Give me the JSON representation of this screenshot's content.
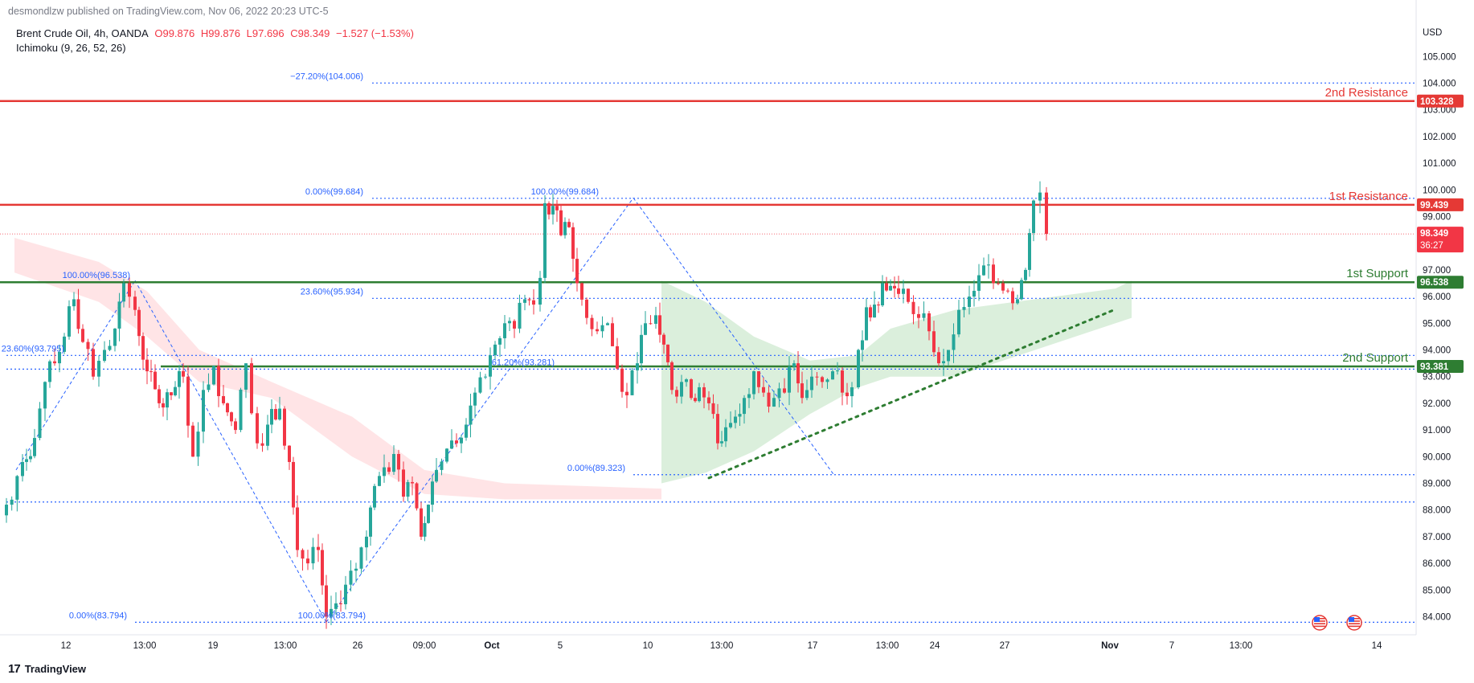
{
  "header": {
    "published": "desmondlzw published on TradingView.com, Nov 06, 2022 20:23 UTC-5",
    "symbol": "Brent Crude Oil, 4h, OANDA",
    "ohlc": {
      "o": "O99.876",
      "h": "H99.876",
      "l": "L97.696",
      "c": "C98.349",
      "change": "−1.527 (−1.53%)"
    },
    "indicator": "Ichimoku (9, 26, 52, 26)"
  },
  "footer": {
    "brand": "TradingView",
    "logo_glyph": "17"
  },
  "colors": {
    "up": "#26a69a",
    "down": "#f23645",
    "fib": "#2962ff",
    "resistance": "#e53935",
    "support": "#2e7d32",
    "cloud_bull": "#a5d6a7",
    "cloud_bear": "#ffcdd2"
  },
  "chart_data": {
    "type": "candlestick",
    "timeframe": "4h",
    "currency": "USD",
    "ylim": [
      83.2,
      106.1
    ],
    "y_ticks": [
      "84.000",
      "85.000",
      "86.000",
      "87.000",
      "88.000",
      "89.000",
      "90.000",
      "91.000",
      "92.000",
      "93.000",
      "94.000",
      "95.000",
      "96.000",
      "97.000",
      "98.000",
      "99.000",
      "100.000",
      "101.000",
      "102.000",
      "103.000",
      "104.000",
      "105.000"
    ],
    "x_ticks": [
      "12",
      "13:00",
      "19",
      "13:00",
      "26",
      "09:00",
      "Oct",
      "5",
      "10",
      "13:00",
      "17",
      "13:00",
      "24",
      "27",
      "Nov",
      "7",
      "13:00",
      "14"
    ],
    "close_path": [
      [
        0,
        88.2
      ],
      [
        20,
        89.8
      ],
      [
        35,
        90.7
      ],
      [
        48,
        92.8
      ],
      [
        60,
        93.5
      ],
      [
        72,
        94.5
      ],
      [
        84,
        95.9
      ],
      [
        95,
        94.3
      ],
      [
        108,
        93.0
      ],
      [
        122,
        94.0
      ],
      [
        135,
        94.8
      ],
      [
        146,
        96.5
      ],
      [
        160,
        95.5
      ],
      [
        175,
        93.2
      ],
      [
        190,
        92.0
      ],
      [
        205,
        92.3
      ],
      [
        220,
        93.0
      ],
      [
        232,
        90.0
      ],
      [
        245,
        92.5
      ],
      [
        258,
        93.4
      ],
      [
        270,
        92.0
      ],
      [
        285,
        91.0
      ],
      [
        298,
        93.5
      ],
      [
        312,
        90.5
      ],
      [
        325,
        91.2
      ],
      [
        340,
        91.8
      ],
      [
        352,
        89.8
      ],
      [
        362,
        86.5
      ],
      [
        375,
        86.0
      ],
      [
        388,
        86.5
      ],
      [
        398,
        84.0
      ],
      [
        410,
        84.5
      ],
      [
        422,
        85.2
      ],
      [
        435,
        85.8
      ],
      [
        448,
        87.0
      ],
      [
        458,
        88.9
      ],
      [
        470,
        89.6
      ],
      [
        482,
        90.1
      ],
      [
        494,
        88.5
      ],
      [
        505,
        89.0
      ],
      [
        516,
        87.0
      ],
      [
        525,
        88.2
      ],
      [
        535,
        89.5
      ],
      [
        548,
        90.3
      ],
      [
        560,
        90.5
      ],
      [
        572,
        91.2
      ],
      [
        583,
        92.4
      ],
      [
        596,
        93.0
      ],
      [
        608,
        94.2
      ],
      [
        620,
        95.0
      ],
      [
        632,
        94.8
      ],
      [
        645,
        95.9
      ],
      [
        656,
        95.7
      ],
      [
        664,
        96.7
      ],
      [
        670,
        99.5
      ],
      [
        680,
        99.4
      ],
      [
        690,
        98.3
      ],
      [
        700,
        98.6
      ],
      [
        710,
        96.5
      ],
      [
        722,
        95.2
      ],
      [
        735,
        94.7
      ],
      [
        748,
        95.0
      ],
      [
        760,
        93.3
      ],
      [
        772,
        92.3
      ],
      [
        785,
        93.5
      ],
      [
        795,
        95.0
      ],
      [
        808,
        95.3
      ],
      [
        818,
        94.2
      ],
      [
        828,
        92.5
      ],
      [
        840,
        92.8
      ],
      [
        852,
        92.2
      ],
      [
        862,
        92.6
      ],
      [
        874,
        92.0
      ],
      [
        885,
        90.5
      ],
      [
        895,
        91.1
      ],
      [
        907,
        91.5
      ],
      [
        918,
        92.2
      ],
      [
        930,
        93.2
      ],
      [
        942,
        92.4
      ],
      [
        955,
        92.2
      ],
      [
        968,
        92.4
      ],
      [
        980,
        93.5
      ],
      [
        990,
        92.2
      ],
      [
        1002,
        93.0
      ],
      [
        1015,
        92.8
      ],
      [
        1028,
        93.2
      ],
      [
        1040,
        92.4
      ],
      [
        1052,
        92.6
      ],
      [
        1060,
        94.0
      ],
      [
        1070,
        95.6
      ],
      [
        1080,
        95.7
      ],
      [
        1090,
        96.5
      ],
      [
        1100,
        96.4
      ],
      [
        1110,
        96.1
      ],
      [
        1122,
        95.8
      ],
      [
        1135,
        95.2
      ],
      [
        1148,
        94.7
      ],
      [
        1160,
        93.5
      ],
      [
        1172,
        94.0
      ],
      [
        1185,
        95.5
      ],
      [
        1198,
        96.0
      ],
      [
        1210,
        96.8
      ],
      [
        1222,
        97.2
      ],
      [
        1234,
        96.5
      ],
      [
        1246,
        96.2
      ],
      [
        1258,
        95.9
      ],
      [
        1268,
        97.0
      ],
      [
        1278,
        99.6
      ],
      [
        1286,
        99.9
      ],
      [
        1294,
        98.35
      ]
    ],
    "last_price": {
      "value": "98.349",
      "countdown": "36:27"
    },
    "levels": [
      {
        "name": "2nd Resistance",
        "value": "103.328",
        "y": 103.328,
        "kind": "resistance"
      },
      {
        "name": "1st Resistance",
        "value": "99.439",
        "y": 99.439,
        "kind": "resistance"
      },
      {
        "name": "1st Support",
        "value": "96.538",
        "y": 96.538,
        "kind": "support"
      },
      {
        "name": "2nd Support",
        "value": "93.381",
        "y": 93.381,
        "kind": "support"
      }
    ],
    "fib_labels": [
      {
        "text": "−27.20%(104.006)",
        "y": 104.006
      },
      {
        "text": "0.00%(99.684)",
        "y": 99.684
      },
      {
        "text": "100.00%(99.684)",
        "y": 99.684
      },
      {
        "text": "100.00%(96.538)",
        "y": 96.538
      },
      {
        "text": "23.60%(95.934)",
        "y": 95.934
      },
      {
        "text": "23.60%(93.795)",
        "y": 93.795
      },
      {
        "text": "61.20%(93.281)",
        "y": 93.281
      },
      {
        "text": "0.00%(89.323)",
        "y": 89.323
      },
      {
        "text": "0.00%(83.794)",
        "y": 83.794
      },
      {
        "text": "100.00%(83.794)",
        "y": 83.794
      }
    ],
    "extra_dotted_levels": [
      88.3
    ],
    "trendline": {
      "from": [
        874,
        89.2
      ],
      "to": [
        1378,
        95.5
      ]
    }
  }
}
